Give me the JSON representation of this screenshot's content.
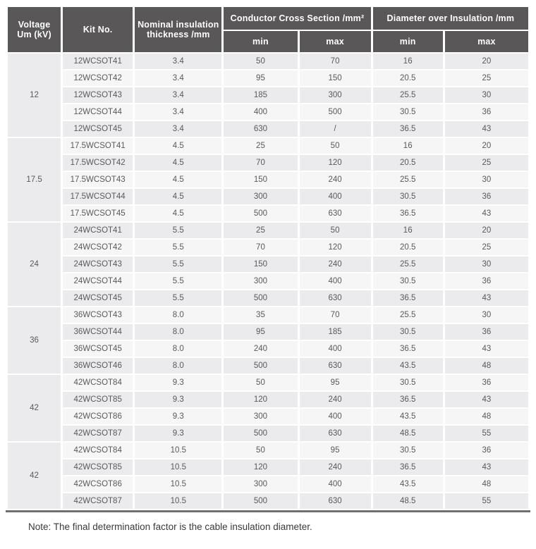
{
  "colors": {
    "header_bg": "#595757",
    "header_text": "#ffffff",
    "stripe_gray": "#ebebed",
    "stripe_light": "#f6f6f7",
    "data_text": "#58595b",
    "bottom_rule": "#6f6f6f",
    "note_text": "#3a3a3a"
  },
  "table": {
    "headers": {
      "voltage_line1": "Voltage",
      "voltage_line2": "Um (kV)",
      "kit_no": "Kit No.",
      "thickness_line1": "Nominal insulation",
      "thickness_line2": "thickness /mm",
      "conductor_cross_section": "Conductor Cross Section /mm²",
      "diameter_over_insulation": "Diameter over Insulation /mm",
      "min": "min",
      "max": "max"
    },
    "groups": [
      {
        "voltage": "12",
        "rows": [
          {
            "kit": "12WCSOT41",
            "thickness": "3.4",
            "ccs_min": "50",
            "ccs_max": "70",
            "dia_min": "16",
            "dia_max": "20"
          },
          {
            "kit": "12WCSOT42",
            "thickness": "3.4",
            "ccs_min": "95",
            "ccs_max": "150",
            "dia_min": "20.5",
            "dia_max": "25"
          },
          {
            "kit": "12WCSOT43",
            "thickness": "3.4",
            "ccs_min": "185",
            "ccs_max": "300",
            "dia_min": "25.5",
            "dia_max": "30"
          },
          {
            "kit": "12WCSOT44",
            "thickness": "3.4",
            "ccs_min": "400",
            "ccs_max": "500",
            "dia_min": "30.5",
            "dia_max": "36"
          },
          {
            "kit": "12WCSOT45",
            "thickness": "3.4",
            "ccs_min": "630",
            "ccs_max": "/",
            "dia_min": "36.5",
            "dia_max": "43"
          }
        ]
      },
      {
        "voltage": "17.5",
        "rows": [
          {
            "kit": "17.5WCSOT41",
            "thickness": "4.5",
            "ccs_min": "25",
            "ccs_max": "50",
            "dia_min": "16",
            "dia_max": "20"
          },
          {
            "kit": "17.5WCSOT42",
            "thickness": "4.5",
            "ccs_min": "70",
            "ccs_max": "120",
            "dia_min": "20.5",
            "dia_max": "25"
          },
          {
            "kit": "17.5WCSOT43",
            "thickness": "4.5",
            "ccs_min": "150",
            "ccs_max": "240",
            "dia_min": "25.5",
            "dia_max": "30"
          },
          {
            "kit": "17.5WCSOT44",
            "thickness": "4.5",
            "ccs_min": "300",
            "ccs_max": "400",
            "dia_min": "30.5",
            "dia_max": "36"
          },
          {
            "kit": "17.5WCSOT45",
            "thickness": "4.5",
            "ccs_min": "500",
            "ccs_max": "630",
            "dia_min": "36.5",
            "dia_max": "43"
          }
        ]
      },
      {
        "voltage": "24",
        "rows": [
          {
            "kit": "24WCSOT41",
            "thickness": "5.5",
            "ccs_min": "25",
            "ccs_max": "50",
            "dia_min": "16",
            "dia_max": "20"
          },
          {
            "kit": "24WCSOT42",
            "thickness": "5.5",
            "ccs_min": "70",
            "ccs_max": "120",
            "dia_min": "20.5",
            "dia_max": "25"
          },
          {
            "kit": "24WCSOT43",
            "thickness": "5.5",
            "ccs_min": "150",
            "ccs_max": "240",
            "dia_min": "25.5",
            "dia_max": "30"
          },
          {
            "kit": "24WCSOT44",
            "thickness": "5.5",
            "ccs_min": "300",
            "ccs_max": "400",
            "dia_min": "30.5",
            "dia_max": "36"
          },
          {
            "kit": "24WCSOT45",
            "thickness": "5.5",
            "ccs_min": "500",
            "ccs_max": "630",
            "dia_min": "36.5",
            "dia_max": "43"
          }
        ]
      },
      {
        "voltage": "36",
        "rows": [
          {
            "kit": "36WCSOT43",
            "thickness": "8.0",
            "ccs_min": "35",
            "ccs_max": "70",
            "dia_min": "25.5",
            "dia_max": "30"
          },
          {
            "kit": "36WCSOT44",
            "thickness": "8.0",
            "ccs_min": "95",
            "ccs_max": "185",
            "dia_min": "30.5",
            "dia_max": "36"
          },
          {
            "kit": "36WCSOT45",
            "thickness": "8.0",
            "ccs_min": "240",
            "ccs_max": "400",
            "dia_min": "36.5",
            "dia_max": "43"
          },
          {
            "kit": "36WCSOT46",
            "thickness": "8.0",
            "ccs_min": "500",
            "ccs_max": "630",
            "dia_min": "43.5",
            "dia_max": "48"
          }
        ]
      },
      {
        "voltage": "42",
        "rows": [
          {
            "kit": "42WCSOT84",
            "thickness": "9.3",
            "ccs_min": "50",
            "ccs_max": "95",
            "dia_min": "30.5",
            "dia_max": "36"
          },
          {
            "kit": "42WCSOT85",
            "thickness": "9.3",
            "ccs_min": "120",
            "ccs_max": "240",
            "dia_min": "36.5",
            "dia_max": "43"
          },
          {
            "kit": "42WCSOT86",
            "thickness": "9.3",
            "ccs_min": "300",
            "ccs_max": "400",
            "dia_min": "43.5",
            "dia_max": "48"
          },
          {
            "kit": "42WCSOT87",
            "thickness": "9.3",
            "ccs_min": "500",
            "ccs_max": "630",
            "dia_min": "48.5",
            "dia_max": "55"
          }
        ]
      },
      {
        "voltage": "42",
        "rows": [
          {
            "kit": "42WCSOT84",
            "thickness": "10.5",
            "ccs_min": "50",
            "ccs_max": "95",
            "dia_min": "30.5",
            "dia_max": "36"
          },
          {
            "kit": "42WCSOT85",
            "thickness": "10.5",
            "ccs_min": "120",
            "ccs_max": "240",
            "dia_min": "36.5",
            "dia_max": "43"
          },
          {
            "kit": "42WCSOT86",
            "thickness": "10.5",
            "ccs_min": "300",
            "ccs_max": "400",
            "dia_min": "43.5",
            "dia_max": "48"
          },
          {
            "kit": "42WCSOT87",
            "thickness": "10.5",
            "ccs_min": "500",
            "ccs_max": "630",
            "dia_min": "48.5",
            "dia_max": "55"
          }
        ]
      }
    ]
  },
  "note": "Note: The final determination factor is the cable insulation diameter."
}
